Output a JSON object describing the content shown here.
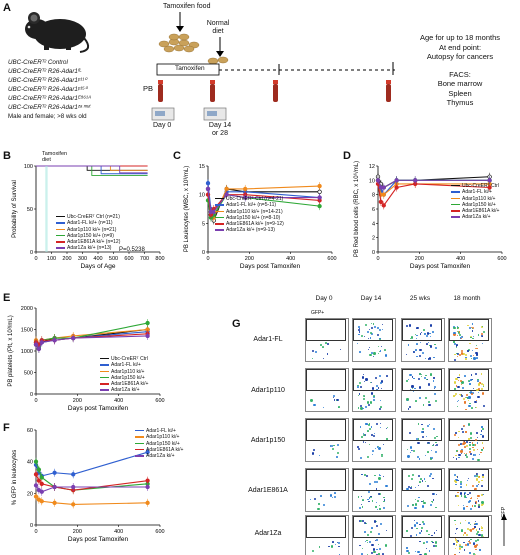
{
  "panels": {
    "A": {
      "letter": "A",
      "genotypes": [
        "UBC-CreERᵀ² Control",
        "UBC-CreERᵀ² R26-Adar1ᶠᴸ",
        "UBC-CreERᵀ² R26-Adar1ᵖ¹¹⁰",
        "UBC-CreERᵀ² R26-Adar1ᵖ¹⁵⁰",
        "UBC-CreERᵀ² R26-Adar1ᴱ⁸⁶¹ᴬ",
        "UBC-CreERᵀ² R26-Adar1ᶻᵃ ᵐᵘᵗ"
      ],
      "sex_note": "Male and female; >8 wks old",
      "tamoxifen_food": "Tamoxifen food",
      "normal_diet": "Normal diet",
      "tamoxifen_bar": "Tamoxifen",
      "pb": "PB",
      "day0": "Day 0",
      "day14": "Day 14 or 28",
      "age_info": "Age for up to 18 months",
      "end_point": "At end point:",
      "autopsy": "Autopsy for cancers",
      "facs": "FACS:",
      "bone_marrow": "Bone marrow",
      "spleen": "Spleen",
      "thymus": "Thymus"
    },
    "B": {
      "letter": "B",
      "ylabel": "Probability of Survival",
      "xlabel": "Days of Age",
      "tamoxifen_label": "Tamoxifen diet",
      "pvalue": "P=0.5238",
      "legend": [
        "Ubc-CreERᵀ Ctrl (n=21)",
        "Adar1-FL ki/+ (n=11)",
        "Adar1p110 ki/+ (n=21)",
        "Adar1p150 ki/+ (n=9)",
        "Adar1E861A ki/+ (n=12)",
        "Adar1Za ki/+ (n=13)"
      ]
    },
    "C": {
      "letter": "C",
      "ylabel": "PB Leukocytes (WBC, x 10³/mL)",
      "xlabel": "Days post Tamoxifen",
      "legend": [
        "Ubc-CreERᵀ Ctrl (n=4-21)",
        "Adar1-FL ki/+ (n=5-11)",
        "Adar1p110 ki/+ (n=14-21)",
        "Adar1p150 ki/+ (n=8-10)",
        "Adar1E861A ki/+ (n=9-12)",
        "Adar1Za ki/+ (n=9-13)"
      ]
    },
    "D": {
      "letter": "D",
      "ylabel": "PB Red blood cells (RBC, x 10⁶/mL)",
      "xlabel": "Days post Tamoxifen",
      "legend": [
        "Ubc-CreERᵀ Ctrl",
        "Adar1-FL ki/+",
        "Adar1p110 ki/+",
        "Adar1p150 ki/+",
        "Adar1E861A ki/+",
        "Adar1Za ki/+"
      ]
    },
    "E": {
      "letter": "E",
      "ylabel": "PB platelets (Plt, x 10³/mL)",
      "xlabel": "Days post Tamoxifen",
      "legend": [
        "Ubc-CreERᵀ Ctrl",
        "Adar1-FL ki/+",
        "Adar1p110 ki/+",
        "Adar1p150 ki/+",
        "Adar1E861A ki/+",
        "Adar1Za ki/+"
      ]
    },
    "F": {
      "letter": "F",
      "ylabel": "% GFP in leukocytes",
      "xlabel": "Days post Tamoxifen",
      "legend": [
        "Adar1-FL ki/+",
        "Adar1p110 ki/+",
        "Adar1p150 ki/+",
        "Adar1E861A ki/+",
        "Adar1Za ki/+"
      ]
    },
    "G": {
      "letter": "G",
      "columns": [
        "Day 0",
        "Day 14",
        "25 wks",
        "18 month"
      ],
      "rows": [
        "Adar1-FL",
        "Adar1p110",
        "Adar1p150",
        "Adar1E861A",
        "Adar1Za"
      ],
      "gate_label": "GFP+",
      "axis_label": "GFP"
    }
  },
  "colors": {
    "ctrl": "#111111",
    "fl": "#2f5fd0",
    "p110": "#f08a1c",
    "p150": "#2ea836",
    "e861a": "#d42424",
    "za": "#7a3fb0"
  },
  "chart_data": [
    {
      "type": "line",
      "panel": "B",
      "ylabel": "Probability of Survival",
      "xlabel": "Days of Age",
      "xlim": [
        0,
        800
      ],
      "ylim": [
        0,
        100
      ],
      "xticks": [
        0,
        100,
        200,
        300,
        400,
        500,
        600,
        700,
        800
      ],
      "yticks": [
        0,
        50,
        100
      ],
      "series": [
        {
          "name": "Ubc-CreERᵀ Ctrl (n=21)",
          "color": "ctrl",
          "x": [
            0,
            330,
            330,
            720
          ],
          "y": [
            100,
            100,
            95,
            95
          ]
        },
        {
          "name": "Adar1-FL ki/+ (n=11)",
          "color": "fl",
          "x": [
            0,
            420,
            420,
            720
          ],
          "y": [
            100,
            100,
            91,
            91
          ]
        },
        {
          "name": "Adar1p110 ki/+ (n=21)",
          "color": "p110",
          "x": [
            0,
            480,
            480,
            720
          ],
          "y": [
            100,
            100,
            95,
            95
          ]
        },
        {
          "name": "Adar1p150 ki/+ (n=9)",
          "color": "p150",
          "x": [
            0,
            360,
            360,
            720
          ],
          "y": [
            100,
            100,
            89,
            89
          ]
        },
        {
          "name": "Adar1E861A ki/+ (n=12)",
          "color": "e861a",
          "x": [
            0,
            720
          ],
          "y": [
            100,
            100
          ]
        },
        {
          "name": "Adar1Za ki/+ (n=13)",
          "color": "za",
          "x": [
            0,
            540,
            540,
            720
          ],
          "y": [
            100,
            100,
            92,
            92
          ]
        }
      ]
    },
    {
      "type": "line",
      "panel": "C",
      "ylabel": "PB Leukocytes (WBC, x 10³/mL)",
      "xlabel": "Days post Tamoxifen",
      "xlim": [
        0,
        600
      ],
      "ylim": [
        0,
        15
      ],
      "xticks": [
        0,
        200,
        400,
        600
      ],
      "yticks": [
        0,
        5,
        10,
        15
      ],
      "x": [
        0,
        14,
        28,
        90,
        180,
        540
      ],
      "series": [
        {
          "name": "Ubc-CreERᵀ Ctrl (n=4-21)",
          "color": "ctrl",
          "y": [
            11,
            6.5,
            5.5,
            11,
            10.5,
            10.5
          ]
        },
        {
          "name": "Adar1-FL ki/+ (n=5-11)",
          "color": "fl",
          "y": [
            12,
            7.5,
            7.0,
            10.5,
            10.5,
            9.5
          ]
        },
        {
          "name": "Adar1p110 ki/+ (n=14-21)",
          "color": "p110",
          "y": [
            10,
            7.0,
            6.0,
            11.0,
            11.0,
            11.5
          ]
        },
        {
          "name": "Adar1p150 ki/+ (n=8-10)",
          "color": "p150",
          "y": [
            9,
            6.0,
            6.5,
            10.0,
            9.5,
            8.0
          ]
        },
        {
          "name": "Adar1E861A ki/+ (n=9-12)",
          "color": "e861a",
          "y": [
            10,
            6.5,
            7.5,
            10.0,
            10.0,
            9.0
          ]
        },
        {
          "name": "Adar1Za ki/+ (n=9-13)",
          "color": "za",
          "y": [
            11,
            7.0,
            7.0,
            10.0,
            9.5,
            9.5
          ]
        }
      ]
    },
    {
      "type": "line",
      "panel": "D",
      "ylabel": "PB Red blood cells (RBC, x 10⁶/mL)",
      "xlabel": "Days post Tamoxifen",
      "xlim": [
        0,
        600
      ],
      "ylim": [
        0,
        12
      ],
      "xticks": [
        0,
        200,
        400,
        600
      ],
      "yticks": [
        0,
        2,
        4,
        6,
        8,
        10,
        12
      ],
      "x": [
        0,
        14,
        28,
        90,
        180,
        540
      ],
      "series": [
        {
          "name": "Ubc-CreERᵀ Ctrl",
          "color": "ctrl",
          "y": [
            10.5,
            9.5,
            9.0,
            10.0,
            10.0,
            10.5
          ]
        },
        {
          "name": "Adar1-FL ki/+",
          "color": "fl",
          "y": [
            10.0,
            8.5,
            8.0,
            10.0,
            10.0,
            10.0
          ]
        },
        {
          "name": "Adar1p110 ki/+",
          "color": "p110",
          "y": [
            10.0,
            8.0,
            8.0,
            9.5,
            9.5,
            9.5
          ]
        },
        {
          "name": "Adar1p150 ki/+",
          "color": "p150",
          "y": [
            10.0,
            9.0,
            9.0,
            10.0,
            10.0,
            10.0
          ]
        },
        {
          "name": "Adar1E861A ki/+",
          "color": "e861a",
          "y": [
            9.5,
            7.0,
            6.5,
            9.0,
            9.5,
            9.0
          ]
        },
        {
          "name": "Adar1Za ki/+",
          "color": "za",
          "y": [
            10.0,
            9.0,
            9.0,
            10.0,
            10.0,
            10.0
          ]
        }
      ]
    },
    {
      "type": "line",
      "panel": "E",
      "ylabel": "PB platelets (Plt, x 10³/mL)",
      "xlabel": "Days post Tamoxifen",
      "xlim": [
        0,
        600
      ],
      "ylim": [
        0,
        2000
      ],
      "xticks": [
        0,
        200,
        400,
        600
      ],
      "yticks": [
        0,
        500,
        1000,
        1500,
        2000
      ],
      "x": [
        0,
        14,
        28,
        90,
        180,
        540
      ],
      "series": [
        {
          "name": "Ubc-CreERᵀ Ctrl",
          "color": "ctrl",
          "y": [
            1150,
            1050,
            1200,
            1300,
            1300,
            1500
          ]
        },
        {
          "name": "Adar1-FL ki/+",
          "color": "fl",
          "y": [
            1200,
            1100,
            1200,
            1250,
            1300,
            1450
          ]
        },
        {
          "name": "Adar1p110 ki/+",
          "color": "p110",
          "y": [
            1250,
            1150,
            1250,
            1300,
            1350,
            1500
          ]
        },
        {
          "name": "Adar1p150 ki/+",
          "color": "p150",
          "y": [
            1200,
            1100,
            1250,
            1300,
            1300,
            1650
          ]
        },
        {
          "name": "Adar1E861A ki/+",
          "color": "e861a",
          "y": [
            1200,
            1150,
            1250,
            1250,
            1300,
            1400
          ]
        },
        {
          "name": "Adar1Za ki/+",
          "color": "za",
          "y": [
            1150,
            1050,
            1200,
            1250,
            1300,
            1350
          ]
        }
      ]
    },
    {
      "type": "line",
      "panel": "F",
      "ylabel": "% GFP in leukocytes",
      "xlabel": "Days post Tamoxifen",
      "xlim": [
        0,
        600
      ],
      "ylim": [
        0,
        60
      ],
      "xticks": [
        0,
        200,
        400,
        600
      ],
      "yticks": [
        0,
        20,
        40,
        60
      ],
      "x": [
        0,
        14,
        28,
        90,
        180,
        540
      ],
      "series": [
        {
          "name": "Adar1-FL ki/+",
          "color": "fl",
          "y": [
            38,
            33,
            31,
            33,
            32,
            46
          ]
        },
        {
          "name": "Adar1p110 ki/+",
          "color": "p110",
          "y": [
            18,
            16,
            15,
            14,
            13,
            14
          ]
        },
        {
          "name": "Adar1p150 ki/+",
          "color": "p150",
          "y": [
            40,
            35,
            30,
            24,
            22,
            26
          ]
        },
        {
          "name": "Adar1E861A ki/+",
          "color": "e861a",
          "y": [
            32,
            28,
            26,
            24,
            22,
            28
          ]
        },
        {
          "name": "Adar1Za ki/+",
          "color": "za",
          "y": [
            25,
            22,
            21,
            24,
            24,
            24
          ]
        }
      ]
    }
  ]
}
